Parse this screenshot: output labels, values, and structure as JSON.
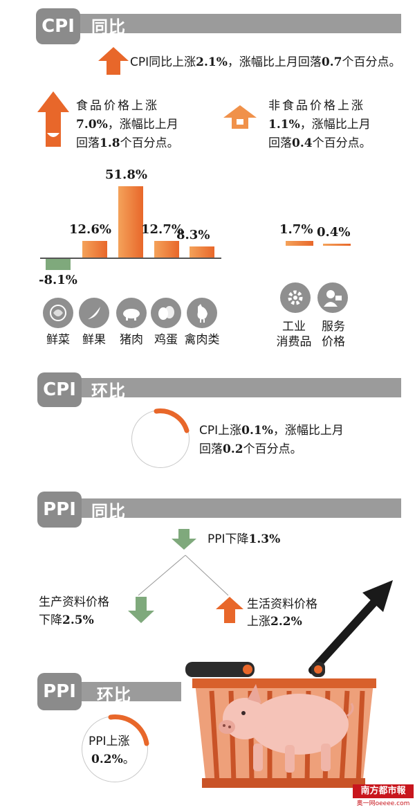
{
  "sections": {
    "cpi_yoy": {
      "badge": "CPI",
      "title": "同比"
    },
    "cpi_mom": {
      "badge": "CPI",
      "title": "环比"
    },
    "ppi_yoy": {
      "badge": "PPI",
      "title": "同比"
    },
    "ppi_mom": {
      "badge": "PPI",
      "title": "环比"
    }
  },
  "cpi_yoy": {
    "headline_a": "CPI同比上涨",
    "headline_v1": "2.1%",
    "headline_b": "，涨幅比上月回落",
    "headline_v2": "0.7",
    "headline_c": "个百分点。",
    "food": {
      "line1": "食品价格上涨",
      "v1": "7.0%",
      "line2": "，涨幅比上月",
      "line3a": "回落",
      "v2": "1.8",
      "line3b": "个百分点。"
    },
    "nonfood": {
      "line1": "非食品价格上涨",
      "v1": "1.1%",
      "line2": "，涨幅比上月",
      "line3a": "回落",
      "v2": "0.4",
      "line3b": "个百分点。"
    }
  },
  "chart_data": [
    {
      "type": "bar",
      "categories": [
        "鲜菜",
        "鲜果",
        "猪肉",
        "鸡蛋",
        "禽肉类"
      ],
      "values": [
        -8.1,
        12.6,
        51.8,
        12.7,
        8.3
      ],
      "labels": [
        "-8.1%",
        "12.6%",
        "51.8%",
        "12.7%",
        "8.3%"
      ],
      "icons": [
        "vegetable-icon",
        "banana-icon",
        "pig-icon",
        "egg-icon",
        "chicken-icon"
      ]
    },
    {
      "type": "bar",
      "categories": [
        "工业消费品",
        "服务价格"
      ],
      "values": [
        1.7,
        0.4
      ],
      "labels": [
        "1.7%",
        "0.4%"
      ],
      "icons": [
        "gear-icon",
        "service-person-icon"
      ]
    }
  ],
  "nonfood_labels": {
    "industry_l1": "工业",
    "industry_l2": "消费品",
    "service_l1": "服务",
    "service_l2": "价格"
  },
  "cpi_mom": {
    "a": "CPI上涨",
    "v1": "0.1%",
    "b": "，涨幅比上月",
    "c": "回落",
    "v2": "0.2",
    "d": "个百分点。"
  },
  "ppi_yoy": {
    "headline_a": "PPI下降",
    "headline_v": "1.3%",
    "production": {
      "l1": "生产资料价格",
      "l2a": "下降",
      "v": "2.5%"
    },
    "living": {
      "l1": "生活资料价格",
      "l2a": "上涨",
      "v": "2.2%"
    }
  },
  "ppi_mom": {
    "a": "PPI上涨",
    "v": "0.2%",
    "end": "。"
  },
  "watermark": {
    "logo": "南方都市報",
    "site": "奥一网oeeee.com"
  },
  "colors": {
    "orange": "#e8672a",
    "orange_light": "#f4a25a",
    "green": "#7fa97c",
    "gray": "#9b9b9b"
  }
}
